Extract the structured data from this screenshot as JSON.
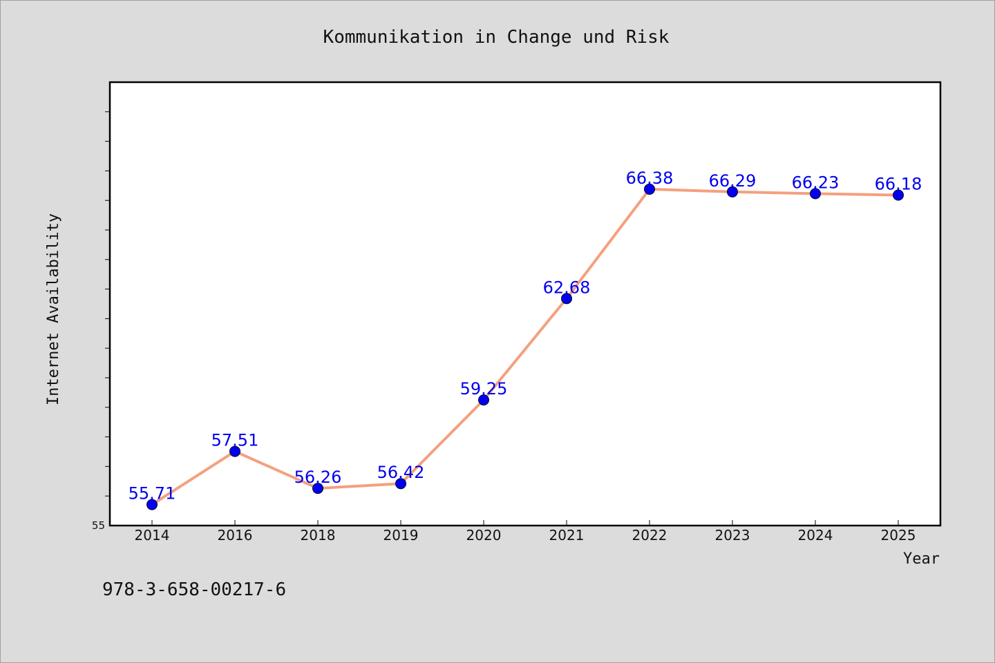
{
  "chart_data": {
    "type": "line",
    "title": "Kommunikation in Change und Risk",
    "xlabel": "Year",
    "ylabel": "Internet Availability",
    "categories": [
      "2014",
      "2016",
      "2018",
      "2019",
      "2020",
      "2021",
      "2022",
      "2023",
      "2024",
      "2025"
    ],
    "series": [
      {
        "values": [
          55.71,
          57.51,
          56.26,
          56.42,
          59.25,
          62.68,
          66.38,
          66.29,
          66.23,
          66.18
        ],
        "labels": [
          "55.71",
          "57.51",
          "56.26",
          "56.42",
          "59.25",
          "62.68",
          "66.38",
          "66.29",
          "66.23",
          "66.18"
        ],
        "line_color": "#f4a07e",
        "marker_color": "#0000ee"
      }
    ],
    "ylim": [
      55,
      70
    ],
    "ytick_label": "55",
    "grid": false,
    "legend": "none"
  },
  "footer": {
    "isbn": "978-3-658-00217-6"
  }
}
